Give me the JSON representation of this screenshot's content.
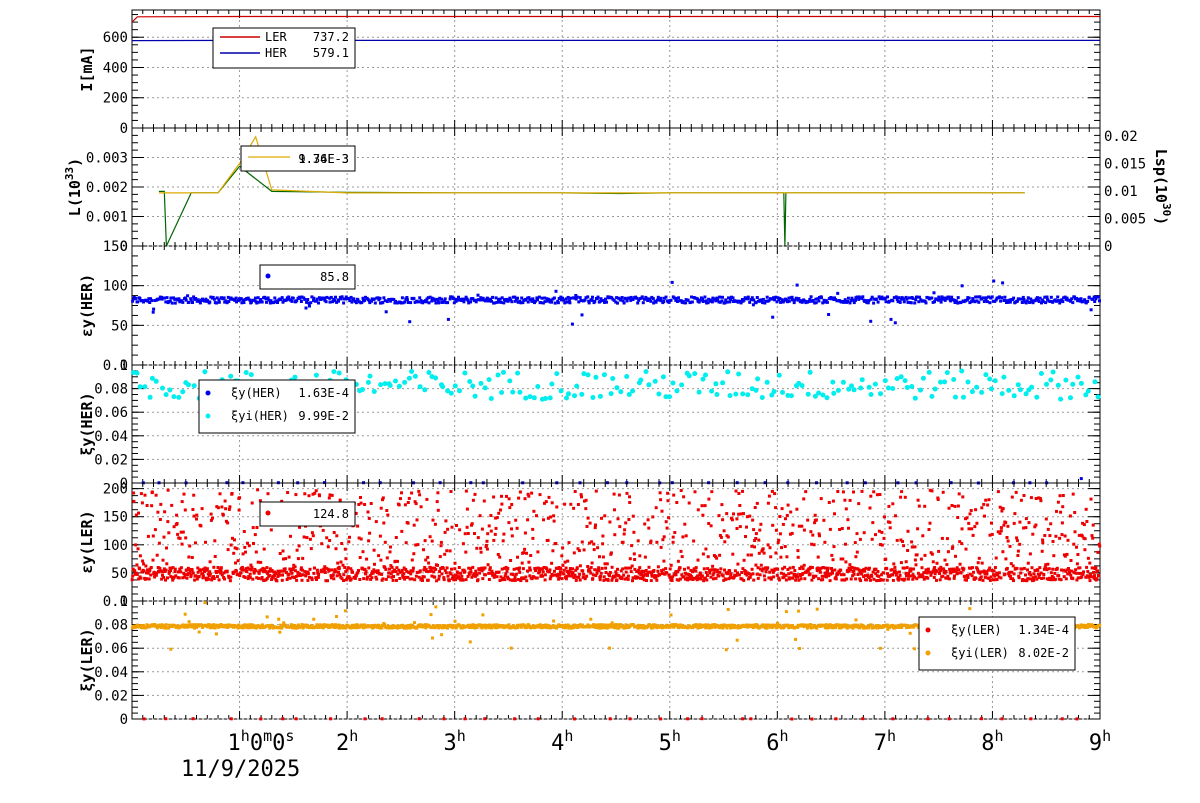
{
  "chart_data": [
    {
      "type": "line",
      "ylabel": "I[mA]",
      "ylim": [
        0,
        780
      ],
      "yticks": [
        "0",
        "200",
        "400",
        "600"
      ],
      "grid": true,
      "legend_placement": "top-left",
      "series": [
        {
          "name": "LER",
          "value": "737.2",
          "color": "#cc0000",
          "points": [
            [
              0,
              700
            ],
            [
              0.05,
              735
            ],
            [
              1,
              737
            ],
            [
              2,
              737
            ],
            [
              3,
              737
            ],
            [
              4,
              737
            ],
            [
              4.55,
              737
            ],
            [
              5,
              737
            ],
            [
              6,
              737
            ],
            [
              7,
              737
            ],
            [
              8,
              737
            ],
            [
              9,
              737
            ]
          ]
        },
        {
          "name": "HER",
          "value": "579.1",
          "color": "#0000aa",
          "points": [
            [
              0,
              578
            ],
            [
              1,
              579
            ],
            [
              2,
              579
            ],
            [
              3,
              579
            ],
            [
              4,
              579
            ],
            [
              5,
              579
            ],
            [
              6,
              579
            ],
            [
              7,
              579
            ],
            [
              8,
              579
            ],
            [
              9,
              579
            ]
          ]
        }
      ]
    },
    {
      "type": "line",
      "ylabel": "L(10^33)",
      "ylabel_main": "L(10",
      "ylabel_sup": "33",
      "ylabel_end": ")",
      "ylim": [
        0,
        0.004
      ],
      "yticks": [
        "0",
        "0.001",
        "0.002",
        "0.003"
      ],
      "y2label": "Lsp(10^30)",
      "y2label_main": "Lsp(10",
      "y2label_sup": "30",
      "y2label_end": ")",
      "y2lim": [
        0,
        0.0215
      ],
      "y2ticks": [
        "0",
        "0.005",
        "0.01",
        "0.015",
        "0.02"
      ],
      "grid": true,
      "legend_placement": "top-left",
      "legend_values": [
        "9.76E-3",
        "1.34E-3"
      ],
      "series": [
        {
          "name": "",
          "color": "#006600",
          "points": [
            [
              0.25,
              0.00185
            ],
            [
              0.3,
              0.00185
            ],
            [
              0.32,
              0.0
            ],
            [
              0.55,
              0.0018
            ],
            [
              0.8,
              0.0018
            ],
            [
              1.0,
              0.0027
            ],
            [
              1.3,
              0.00185
            ],
            [
              2,
              0.00182
            ],
            [
              3,
              0.0018
            ],
            [
              4,
              0.0018
            ],
            [
              4.55,
              0.00178
            ],
            [
              5,
              0.0018
            ],
            [
              6,
              0.0018
            ],
            [
              6.06,
              0.0018
            ],
            [
              6.07,
              0.0
            ],
            [
              6.08,
              0.0018
            ],
            [
              7,
              0.0018
            ],
            [
              8,
              0.0018
            ],
            [
              8.3,
              0.0018
            ]
          ]
        },
        {
          "name": "",
          "color": "#ddaa00",
          "points": [
            [
              0.25,
              0.0018
            ],
            [
              0.8,
              0.0018
            ],
            [
              1.0,
              0.0028
            ],
            [
              1.15,
              0.0037
            ],
            [
              1.3,
              0.0019
            ],
            [
              2,
              0.0018
            ],
            [
              3,
              0.0018
            ],
            [
              4,
              0.0018
            ],
            [
              5,
              0.0018
            ],
            [
              6,
              0.0018
            ],
            [
              7,
              0.0018
            ],
            [
              8,
              0.0018
            ],
            [
              8.3,
              0.0018
            ]
          ]
        }
      ]
    },
    {
      "type": "scatter",
      "ylabel": "εy(HER)",
      "ylim": [
        0,
        150
      ],
      "yticks": [
        "0",
        "50",
        "100",
        "150"
      ],
      "grid": true,
      "legend_placement": "top-left",
      "series": [
        {
          "name": "",
          "value": "85.8",
          "color": "#0000ee",
          "center": 82,
          "spread": 4,
          "n": 900
        }
      ]
    },
    {
      "type": "scatter",
      "ylabel": "ξy(HER)",
      "ylim": [
        0,
        0.1
      ],
      "yticks": [
        "0",
        "0.02",
        "0.04",
        "0.06",
        "0.08",
        "0.1"
      ],
      "grid": true,
      "legend_placement": "top-left",
      "series": [
        {
          "name": "ξy(HER)",
          "value": "1.63E-4",
          "color": "#0000ee",
          "center": 0.0002,
          "spread": 0.0001,
          "n": 36
        },
        {
          "name": "ξyi(HER)",
          "value": "9.99E-2",
          "color": "#00eeee",
          "center": 0.083,
          "spread": 0.012,
          "n": 240
        }
      ]
    },
    {
      "type": "scatter",
      "ylabel": "εy(LER)",
      "ylim": [
        0,
        210
      ],
      "yticks": [
        "0",
        "50",
        "100",
        "150",
        "200"
      ],
      "grid": true,
      "legend_placement": "top-left",
      "series": [
        {
          "name": "",
          "value": "124.8",
          "color": "#ee0000",
          "center": 48,
          "spread": 6,
          "n": 2200
        }
      ]
    },
    {
      "type": "scatter",
      "ylabel": "ξy(LER)",
      "ylim": [
        0,
        0.1
      ],
      "yticks": [
        "0",
        "0.02",
        "0.04",
        "0.06",
        "0.08",
        "0.1"
      ],
      "grid": true,
      "legend_placement": "top-right",
      "series": [
        {
          "name": "ξy(LER)",
          "value": "1.34E-4",
          "color": "#ee0000",
          "center": 0.0002,
          "spread": 0.0001,
          "n": 36
        },
        {
          "name": "ξyi(LER)",
          "value": "8.02E-2",
          "color": "#f0a000",
          "center": 0.0785,
          "spread": 0.0015,
          "n": 1400
        }
      ]
    }
  ],
  "x_axis": {
    "xlim": [
      0,
      9
    ],
    "ticks": [
      {
        "value": 1,
        "main": "1",
        "sup": "h",
        "mid": "0",
        "sup2": "m",
        "tail": "0",
        "sup3": "s",
        "end": ""
      },
      {
        "value": 2,
        "main": "2",
        "sup": "h"
      },
      {
        "value": 3,
        "main": "3",
        "sup": "h"
      },
      {
        "value": 4,
        "main": "4",
        "sup": "h"
      },
      {
        "value": 5,
        "main": "5",
        "sup": "h"
      },
      {
        "value": 6,
        "main": "6",
        "sup": "h"
      },
      {
        "value": 7,
        "main": "7",
        "sup": "h"
      },
      {
        "value": 8,
        "main": "8",
        "sup": "h"
      },
      {
        "value": 9,
        "main": "9",
        "sup": "h"
      }
    ],
    "date": "11/9/2025"
  }
}
